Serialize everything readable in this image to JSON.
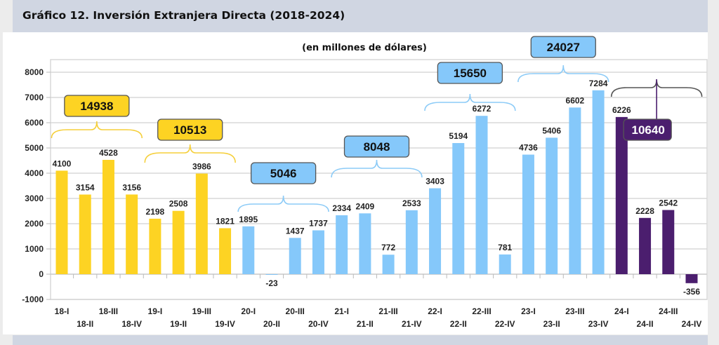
{
  "header": {
    "title": "Gráfico 12. Inversión Extranjera Directa (2018-2024)"
  },
  "chart_data": {
    "type": "bar",
    "title": "Gráfico 12. Inversión Extranjera Directa (2018-2024)",
    "subtitle": "(en millones de dólares)",
    "xlabel": "",
    "ylabel": "",
    "ylim": [
      -1000,
      8500
    ],
    "yticks": [
      -1000,
      0,
      1000,
      2000,
      3000,
      4000,
      5000,
      6000,
      7000,
      8000
    ],
    "grid": true,
    "categories": [
      "18-I",
      "18-II",
      "18-III",
      "18-IV",
      "19-I",
      "19-II",
      "19-III",
      "19-IV",
      "20-I",
      "20-II",
      "20-III",
      "20-IV",
      "21-I",
      "21-II",
      "21-III",
      "21-IV",
      "22-I",
      "22-II",
      "22-III",
      "22-IV",
      "23-I",
      "23-II",
      "23-III",
      "23-IV",
      "24-I",
      "24-II",
      "24-III",
      "24-IV"
    ],
    "values": [
      4100,
      3154,
      4528,
      3156,
      2198,
      2508,
      3986,
      1821,
      1895,
      -23,
      1437,
      1737,
      2334,
      2409,
      772,
      2533,
      3403,
      5194,
      6272,
      781,
      4736,
      5406,
      6602,
      7284,
      6226,
      2228,
      2542,
      -356
    ],
    "groups": [
      {
        "year": "2018",
        "total": "14938",
        "color": "#fdd323",
        "text_color": "#111111"
      },
      {
        "year": "2019",
        "total": "10513",
        "color": "#fdd323",
        "text_color": "#111111"
      },
      {
        "year": "2020",
        "total": "5046",
        "color": "#85c8fa",
        "text_color": "#111111"
      },
      {
        "year": "2021",
        "total": "8048",
        "color": "#85c8fa",
        "text_color": "#111111"
      },
      {
        "year": "2022",
        "total": "15650",
        "color": "#85c8fa",
        "text_color": "#111111"
      },
      {
        "year": "2023",
        "total": "24027",
        "color": "#85c8fa",
        "text_color": "#111111"
      },
      {
        "year": "2024",
        "total": "10640",
        "color": "#4b1e6e",
        "text_color": "#ffffff"
      }
    ],
    "brace_colors": [
      "#f5cf3a",
      "#f5cf3a",
      "#8ccbf7",
      "#8ccbf7",
      "#8ccbf7",
      "#8ccbf7",
      "#555555"
    ]
  }
}
